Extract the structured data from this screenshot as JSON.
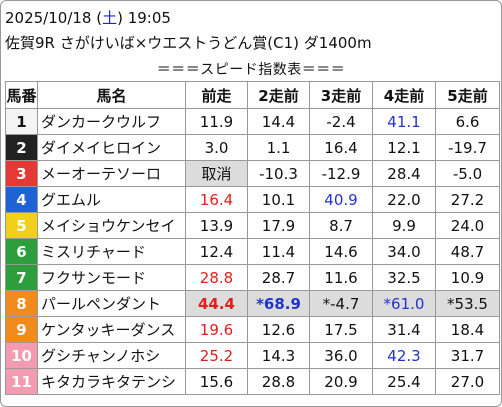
{
  "header": {
    "date_prefix": "2025/10/18 (",
    "day_of_week": "土",
    "date_suffix": ") 19:05",
    "race_info": "佐賀9R さがけいば×ウエストうどん賞(C1) ダ1400m"
  },
  "banner": "＝＝＝スピード指数表＝＝＝",
  "columns": [
    "馬番",
    "馬名",
    "前走",
    "2走前",
    "3走前",
    "4走前",
    "5走前"
  ],
  "colors": {
    "waku": [
      "#f4f4f4",
      "#222222",
      "#e53935",
      "#1e63d6",
      "#f2cf1a",
      "#2e9e3c",
      "#f28a1c",
      "#f39bb0"
    ],
    "highlight": "#e02020",
    "blue_value": "#2233cc"
  },
  "rows": [
    {
      "num": "1",
      "name": "ダンカークウルフ",
      "vals": [
        "11.9",
        "14.4",
        "-2.4",
        "41.1",
        "6.6"
      ]
    },
    {
      "num": "2",
      "name": "ダイメイヒロイン",
      "vals": [
        "3.0",
        "1.1",
        "16.4",
        "12.1",
        "-19.7"
      ]
    },
    {
      "num": "3",
      "name": "メーオーテソーロ",
      "vals": [
        "取消",
        "-10.3",
        "-12.9",
        "28.4",
        "-5.0"
      ]
    },
    {
      "num": "4",
      "name": "グエムル",
      "vals": [
        "16.4",
        "10.1",
        "40.9",
        "22.0",
        "27.2"
      ]
    },
    {
      "num": "5",
      "name": "メイショウケンセイ",
      "vals": [
        "13.9",
        "17.9",
        "8.7",
        "9.9",
        "24.0"
      ]
    },
    {
      "num": "6",
      "name": "ミスリチャード",
      "vals": [
        "12.4",
        "11.4",
        "14.6",
        "34.0",
        "48.7"
      ]
    },
    {
      "num": "7",
      "name": "フクサンモード",
      "vals": [
        "28.8",
        "28.7",
        "11.6",
        "32.5",
        "10.9"
      ]
    },
    {
      "num": "8",
      "name": "パールペンダント",
      "vals": [
        "44.4",
        "*68.9",
        "*-4.7",
        "*61.0",
        "*53.5"
      ]
    },
    {
      "num": "9",
      "name": "ケンタッキーダンス",
      "vals": [
        "19.6",
        "12.6",
        "17.5",
        "31.4",
        "18.4"
      ]
    },
    {
      "num": "10",
      "name": "グシチャンノホシ",
      "vals": [
        "25.2",
        "14.3",
        "36.0",
        "42.3",
        "31.7"
      ]
    },
    {
      "num": "11",
      "name": "キタカラキタテンシ",
      "vals": [
        "15.6",
        "28.8",
        "20.9",
        "25.4",
        "27.0"
      ]
    }
  ]
}
